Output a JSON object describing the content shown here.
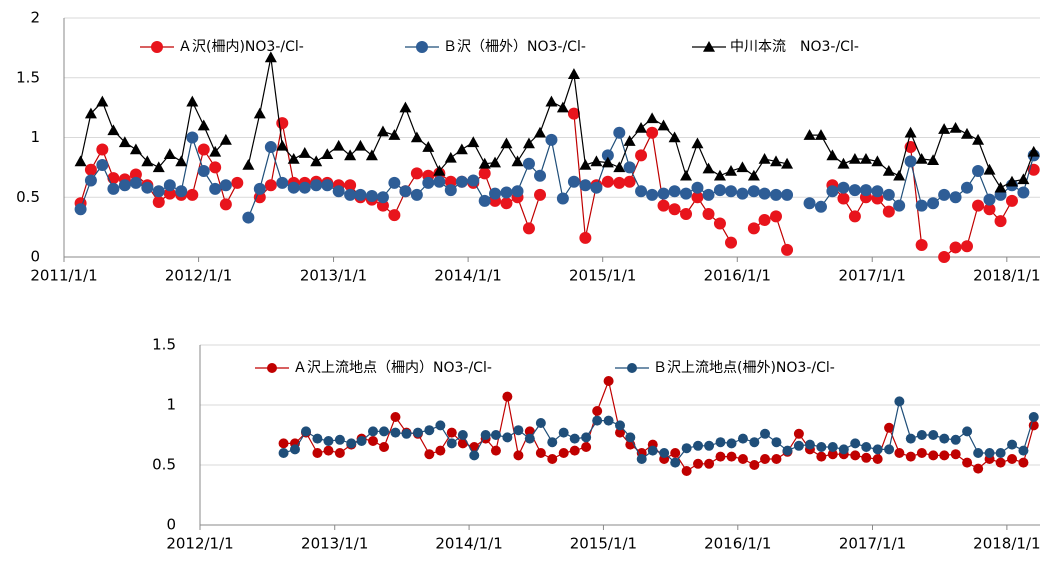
{
  "chart_data": [
    {
      "type": "line",
      "legend": "top",
      "grid": true,
      "xlim": [
        "2011/1/1",
        "2018/4/1"
      ],
      "xticks": [
        "2011/1/1",
        "2012/1/1",
        "2013/1/1",
        "2014/1/1",
        "2015/1/1",
        "2016/1/1",
        "2017/1/1",
        "2018/1/1"
      ],
      "ylim": [
        0,
        2
      ],
      "yticks": [
        0,
        0.5,
        1,
        1.5,
        2
      ],
      "x": [
        "2011/2/15",
        "2011/3/15",
        "2011/4/15",
        "2011/5/15",
        "2011/6/15",
        "2011/7/15",
        "2011/8/15",
        "2011/9/15",
        "2011/10/15",
        "2011/11/15",
        "2011/12/15",
        "2012/1/15",
        "2012/2/15",
        "2012/3/15",
        "2012/4/15",
        "2012/5/15",
        "2012/6/15",
        "2012/7/15",
        "2012/8/15",
        "2012/9/15",
        "2012/10/15",
        "2012/11/15",
        "2012/12/15",
        "2013/1/15",
        "2013/2/15",
        "2013/3/15",
        "2013/4/15",
        "2013/5/15",
        "2013/6/15",
        "2013/7/15",
        "2013/8/15",
        "2013/9/15",
        "2013/10/15",
        "2013/11/15",
        "2013/12/15",
        "2014/1/15",
        "2014/2/15",
        "2014/3/15",
        "2014/4/15",
        "2014/5/15",
        "2014/6/15",
        "2014/7/15",
        "2014/8/15",
        "2014/9/15",
        "2014/10/15",
        "2014/11/15",
        "2014/12/15",
        "2015/1/15",
        "2015/2/15",
        "2015/3/15",
        "2015/4/15",
        "2015/5/15",
        "2015/6/15",
        "2015/7/15",
        "2015/8/15",
        "2015/9/15",
        "2015/10/15",
        "2015/11/15",
        "2015/12/15",
        "2016/1/15",
        "2016/2/15",
        "2016/3/15",
        "2016/4/15",
        "2016/5/15",
        "2016/6/15",
        "2016/7/15",
        "2016/8/15",
        "2016/9/15",
        "2016/10/15",
        "2016/11/15",
        "2016/12/15",
        "2017/1/15",
        "2017/2/15",
        "2017/3/15",
        "2017/4/15",
        "2017/5/15",
        "2017/6/15",
        "2017/7/15",
        "2017/8/15",
        "2017/9/15",
        "2017/10/15",
        "2017/11/15",
        "2017/12/15",
        "2018/1/15",
        "2018/2/15",
        "2018/3/15"
      ],
      "series": [
        {
          "name": "Ａ沢(柵内)NO3-/Cl-",
          "color": "#c00000",
          "marker_color": "#e8141c",
          "marker": "circle",
          "values": [
            0.45,
            0.73,
            0.9,
            0.66,
            0.65,
            0.69,
            0.6,
            0.46,
            0.53,
            0.52,
            0.52,
            0.9,
            0.75,
            0.44,
            0.62,
            null,
            0.5,
            0.6,
            1.12,
            0.62,
            0.62,
            0.63,
            0.62,
            0.6,
            0.6,
            0.5,
            0.48,
            0.43,
            0.35,
            0.55,
            0.7,
            0.68,
            0.7,
            0.63,
            0.63,
            0.62,
            0.7,
            0.47,
            0.45,
            0.5,
            0.24,
            0.52,
            null,
            null,
            1.2,
            0.16,
            0.6,
            0.63,
            0.62,
            0.63,
            0.85,
            1.04,
            0.43,
            0.4,
            0.36,
            0.5,
            0.36,
            0.28,
            0.12,
            null,
            0.24,
            0.31,
            0.34,
            0.06,
            null,
            null,
            null,
            0.6,
            0.49,
            0.34,
            0.5,
            0.49,
            0.38,
            null,
            0.92,
            0.1,
            null,
            0,
            0.08,
            0.09,
            0.43,
            0.4,
            0.3,
            0.47,
            null,
            0.73
          ]
        },
        {
          "name": "Ｂ沢（柵外）NO3-/Cl-",
          "color": "#1f4e79",
          "marker_color": "#2e5d96",
          "marker": "circle",
          "values": [
            0.4,
            0.64,
            0.77,
            0.57,
            0.6,
            0.62,
            0.58,
            0.55,
            0.6,
            0.55,
            1.0,
            0.72,
            0.57,
            0.6,
            null,
            0.33,
            0.57,
            0.92,
            0.62,
            0.58,
            0.58,
            0.6,
            0.6,
            0.55,
            0.52,
            0.52,
            0.51,
            0.5,
            0.62,
            0.55,
            0.52,
            0.62,
            0.63,
            0.56,
            0.63,
            0.64,
            0.47,
            0.53,
            0.54,
            0.55,
            0.78,
            0.68,
            0.98,
            0.49,
            0.63,
            0.6,
            0.58,
            0.85,
            1.04,
            0.75,
            0.55,
            0.52,
            0.53,
            0.55,
            0.53,
            0.58,
            0.52,
            0.56,
            0.55,
            0.53,
            0.55,
            0.53,
            0.52,
            0.52,
            null,
            0.45,
            0.42,
            0.55,
            0.58,
            0.56,
            0.56,
            0.55,
            0.52,
            0.43,
            0.8,
            0.43,
            0.45,
            0.52,
            0.5,
            0.58,
            0.72,
            0.48,
            0.52,
            0.6,
            0.54,
            0.85
          ]
        },
        {
          "name": "中川本流　NO3-/Cl-",
          "color": "#000000",
          "marker_color": "#000000",
          "marker": "triangle",
          "values": [
            0.8,
            1.2,
            1.3,
            1.06,
            0.96,
            0.9,
            0.8,
            0.75,
            0.86,
            0.8,
            1.3,
            1.1,
            0.88,
            0.98,
            null,
            0.77,
            1.2,
            1.67,
            0.93,
            0.82,
            0.87,
            0.8,
            0.86,
            0.93,
            0.85,
            0.93,
            0.85,
            1.05,
            1.02,
            1.25,
            1.0,
            0.92,
            0.72,
            0.83,
            0.9,
            0.96,
            0.78,
            0.79,
            0.95,
            0.8,
            0.95,
            1.04,
            1.3,
            1.25,
            1.53,
            0.77,
            0.8,
            0.79,
            0.75,
            0.97,
            1.08,
            1.16,
            1.1,
            1.0,
            0.68,
            0.95,
            0.74,
            0.68,
            0.72,
            0.75,
            0.68,
            0.82,
            0.8,
            0.78,
            null,
            1.02,
            1.02,
            0.85,
            0.78,
            0.82,
            0.82,
            0.8,
            0.72,
            0.68,
            1.04,
            0.82,
            0.81,
            1.07,
            1.08,
            1.03,
            0.98,
            0.73,
            0.58,
            0.63,
            0.65,
            0.88
          ]
        }
      ]
    },
    {
      "type": "line",
      "legend": "top",
      "grid": true,
      "xlim": [
        "2012/1/1",
        "2018/4/1"
      ],
      "xticks": [
        "2012/1/1",
        "2013/1/1",
        "2014/1/1",
        "2015/1/1",
        "2016/1/1",
        "2017/1/1",
        "2018/1/1"
      ],
      "ylim": [
        0,
        1.5
      ],
      "yticks": [
        0,
        0.5,
        1,
        1.5
      ],
      "x": [
        "2012/8/15",
        "2012/9/15",
        "2012/10/15",
        "2012/11/15",
        "2012/12/15",
        "2013/1/15",
        "2013/2/15",
        "2013/3/15",
        "2013/4/15",
        "2013/5/15",
        "2013/6/15",
        "2013/7/15",
        "2013/8/15",
        "2013/9/15",
        "2013/10/15",
        "2013/11/15",
        "2013/12/15",
        "2014/1/15",
        "2014/2/15",
        "2014/3/15",
        "2014/4/15",
        "2014/5/15",
        "2014/6/15",
        "2014/7/15",
        "2014/8/15",
        "2014/9/15",
        "2014/10/15",
        "2014/11/15",
        "2014/12/15",
        "2015/1/15",
        "2015/2/15",
        "2015/3/15",
        "2015/4/15",
        "2015/5/15",
        "2015/6/15",
        "2015/7/15",
        "2015/8/15",
        "2015/9/15",
        "2015/10/15",
        "2015/11/15",
        "2015/12/15",
        "2016/1/15",
        "2016/2/15",
        "2016/3/15",
        "2016/4/15",
        "2016/5/15",
        "2016/6/15",
        "2016/7/15",
        "2016/8/15",
        "2016/9/15",
        "2016/10/15",
        "2016/11/15",
        "2016/12/15",
        "2017/1/15",
        "2017/2/15",
        "2017/3/15",
        "2017/4/15",
        "2017/5/15",
        "2017/6/15",
        "2017/7/15",
        "2017/8/15",
        "2017/9/15",
        "2017/10/15",
        "2017/11/15",
        "2017/12/15",
        "2018/1/15",
        "2018/2/15",
        "2018/3/15"
      ],
      "series": [
        {
          "name": "Ａ沢上流地点（柵内）NO3-/Cl-",
          "color": "#c00000",
          "marker_color": "#c00000",
          "marker": "circle",
          "values": [
            0.68,
            0.68,
            0.77,
            0.6,
            0.62,
            0.6,
            0.67,
            0.72,
            0.7,
            0.65,
            0.9,
            0.77,
            0.76,
            0.59,
            0.62,
            0.77,
            0.68,
            0.65,
            0.72,
            0.62,
            1.07,
            0.58,
            0.78,
            0.6,
            0.55,
            0.6,
            0.62,
            0.65,
            0.95,
            1.2,
            0.77,
            0.67,
            0.6,
            0.67,
            0.55,
            0.6,
            0.45,
            0.51,
            0.51,
            0.57,
            0.57,
            0.55,
            0.5,
            0.55,
            0.55,
            0.61,
            0.76,
            0.63,
            0.57,
            0.59,
            0.59,
            0.58,
            0.56,
            0.55,
            0.81,
            0.6,
            0.57,
            0.6,
            0.58,
            0.58,
            0.59,
            0.52,
            0.47,
            0.55,
            0.52,
            0.55,
            0.52,
            0.83
          ]
        },
        {
          "name": "Ｂ沢上流地点(柵外)NO3-/Cl-",
          "color": "#1f4e79",
          "marker_color": "#1f4e79",
          "marker": "circle",
          "values": [
            0.6,
            0.63,
            0.78,
            0.72,
            0.7,
            0.71,
            0.68,
            0.7,
            0.78,
            0.78,
            0.77,
            0.76,
            0.77,
            0.79,
            0.83,
            0.68,
            0.75,
            0.58,
            0.75,
            0.75,
            0.73,
            0.79,
            0.72,
            0.85,
            0.69,
            0.77,
            0.72,
            0.73,
            0.87,
            0.87,
            0.83,
            0.73,
            0.55,
            0.62,
            0.6,
            0.52,
            0.64,
            0.66,
            0.66,
            0.69,
            0.68,
            0.72,
            0.69,
            0.76,
            0.69,
            0.62,
            0.66,
            0.67,
            0.65,
            0.65,
            0.63,
            0.68,
            0.65,
            0.63,
            0.63,
            1.03,
            0.72,
            0.75,
            0.75,
            0.72,
            0.71,
            0.78,
            0.6,
            0.6,
            0.6,
            0.67,
            0.62,
            0.9
          ]
        }
      ]
    }
  ]
}
